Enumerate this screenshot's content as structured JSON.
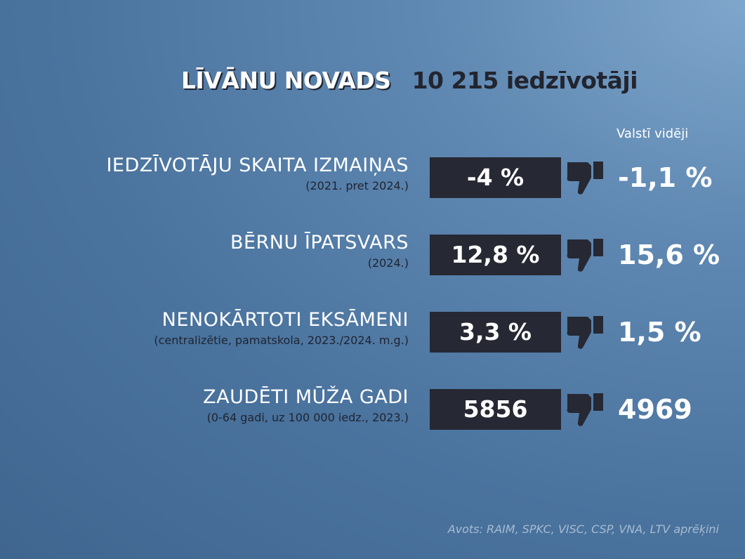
{
  "header": {
    "region": "LĪVĀNU NOVADS",
    "population": "10 215 iedzīvotāji"
  },
  "avg_header": "Valstī vidēji",
  "rows": [
    {
      "label": "IEDZĪVOTĀJU SKAITA IZMAIŅAS",
      "sublabel": "(2021. pret 2024.)",
      "value": "-4 %",
      "icon": "thumbs-down-icon",
      "average": "-1,1 %"
    },
    {
      "label": "BĒRNU ĪPATSVARS",
      "sublabel": "(2024.)",
      "value": "12,8 %",
      "icon": "thumbs-down-icon",
      "average": "15,6 %"
    },
    {
      "label": "NENOKĀRTOTI EKSĀMENI",
      "sublabel": "(centralizētie, pamatskola, 2023./2024. m.g.)",
      "value": "3,3 %",
      "icon": "thumbs-down-icon",
      "average": "1,5 %"
    },
    {
      "label": "ZAUDĒTI MŪŽA GADI",
      "sublabel": "(0-64 gadi, uz 100 000 iedz., 2023.)",
      "value": "5856",
      "icon": "thumbs-down-icon",
      "average": "4969"
    }
  ],
  "source": "Avots: RAIM, SPKC, VISC, CSP, VNA, LTV aprēķini",
  "colors": {
    "background": "#4a739e",
    "value_box": "#262833",
    "text_light": "#ffffff",
    "text_dark": "#1f2430"
  }
}
